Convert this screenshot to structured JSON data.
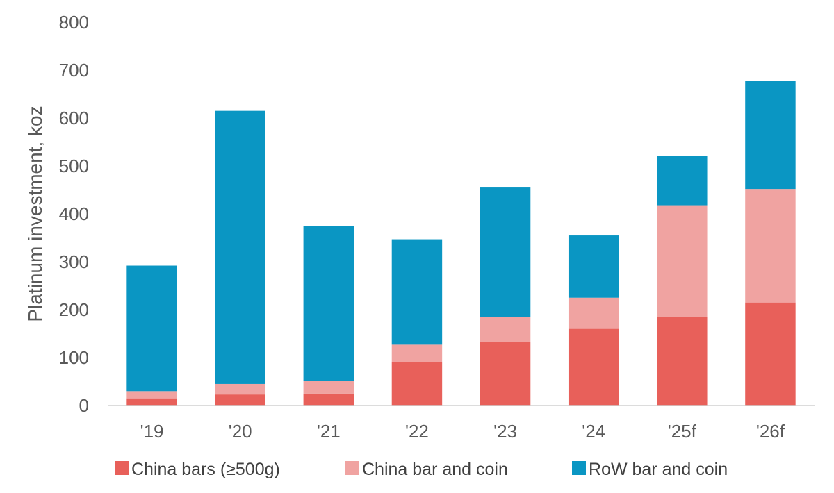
{
  "chart_data": {
    "type": "bar",
    "stacked": true,
    "title": "",
    "xlabel": "",
    "ylabel": "Platinum investment, koz",
    "ylim": [
      0,
      800
    ],
    "yticks": [
      0,
      100,
      200,
      300,
      400,
      500,
      600,
      700,
      800
    ],
    "categories": [
      "'19",
      "'20",
      "'21",
      "'22",
      "'23",
      "'24",
      "'25f",
      "'26f"
    ],
    "series": [
      {
        "name": "China bars (≥500g)",
        "color": "#e8605a",
        "values": [
          15,
          23,
          25,
          90,
          133,
          160,
          185,
          215
        ]
      },
      {
        "name": "China bar and coin",
        "color": "#f0a3a1",
        "values": [
          15,
          22,
          27,
          37,
          52,
          65,
          233,
          237
        ]
      },
      {
        "name": "RoW bar and coin",
        "color": "#0a96c3",
        "values": [
          262,
          570,
          322,
          220,
          270,
          130,
          103,
          225
        ]
      }
    ],
    "grid": false,
    "legend_position": "bottom"
  }
}
